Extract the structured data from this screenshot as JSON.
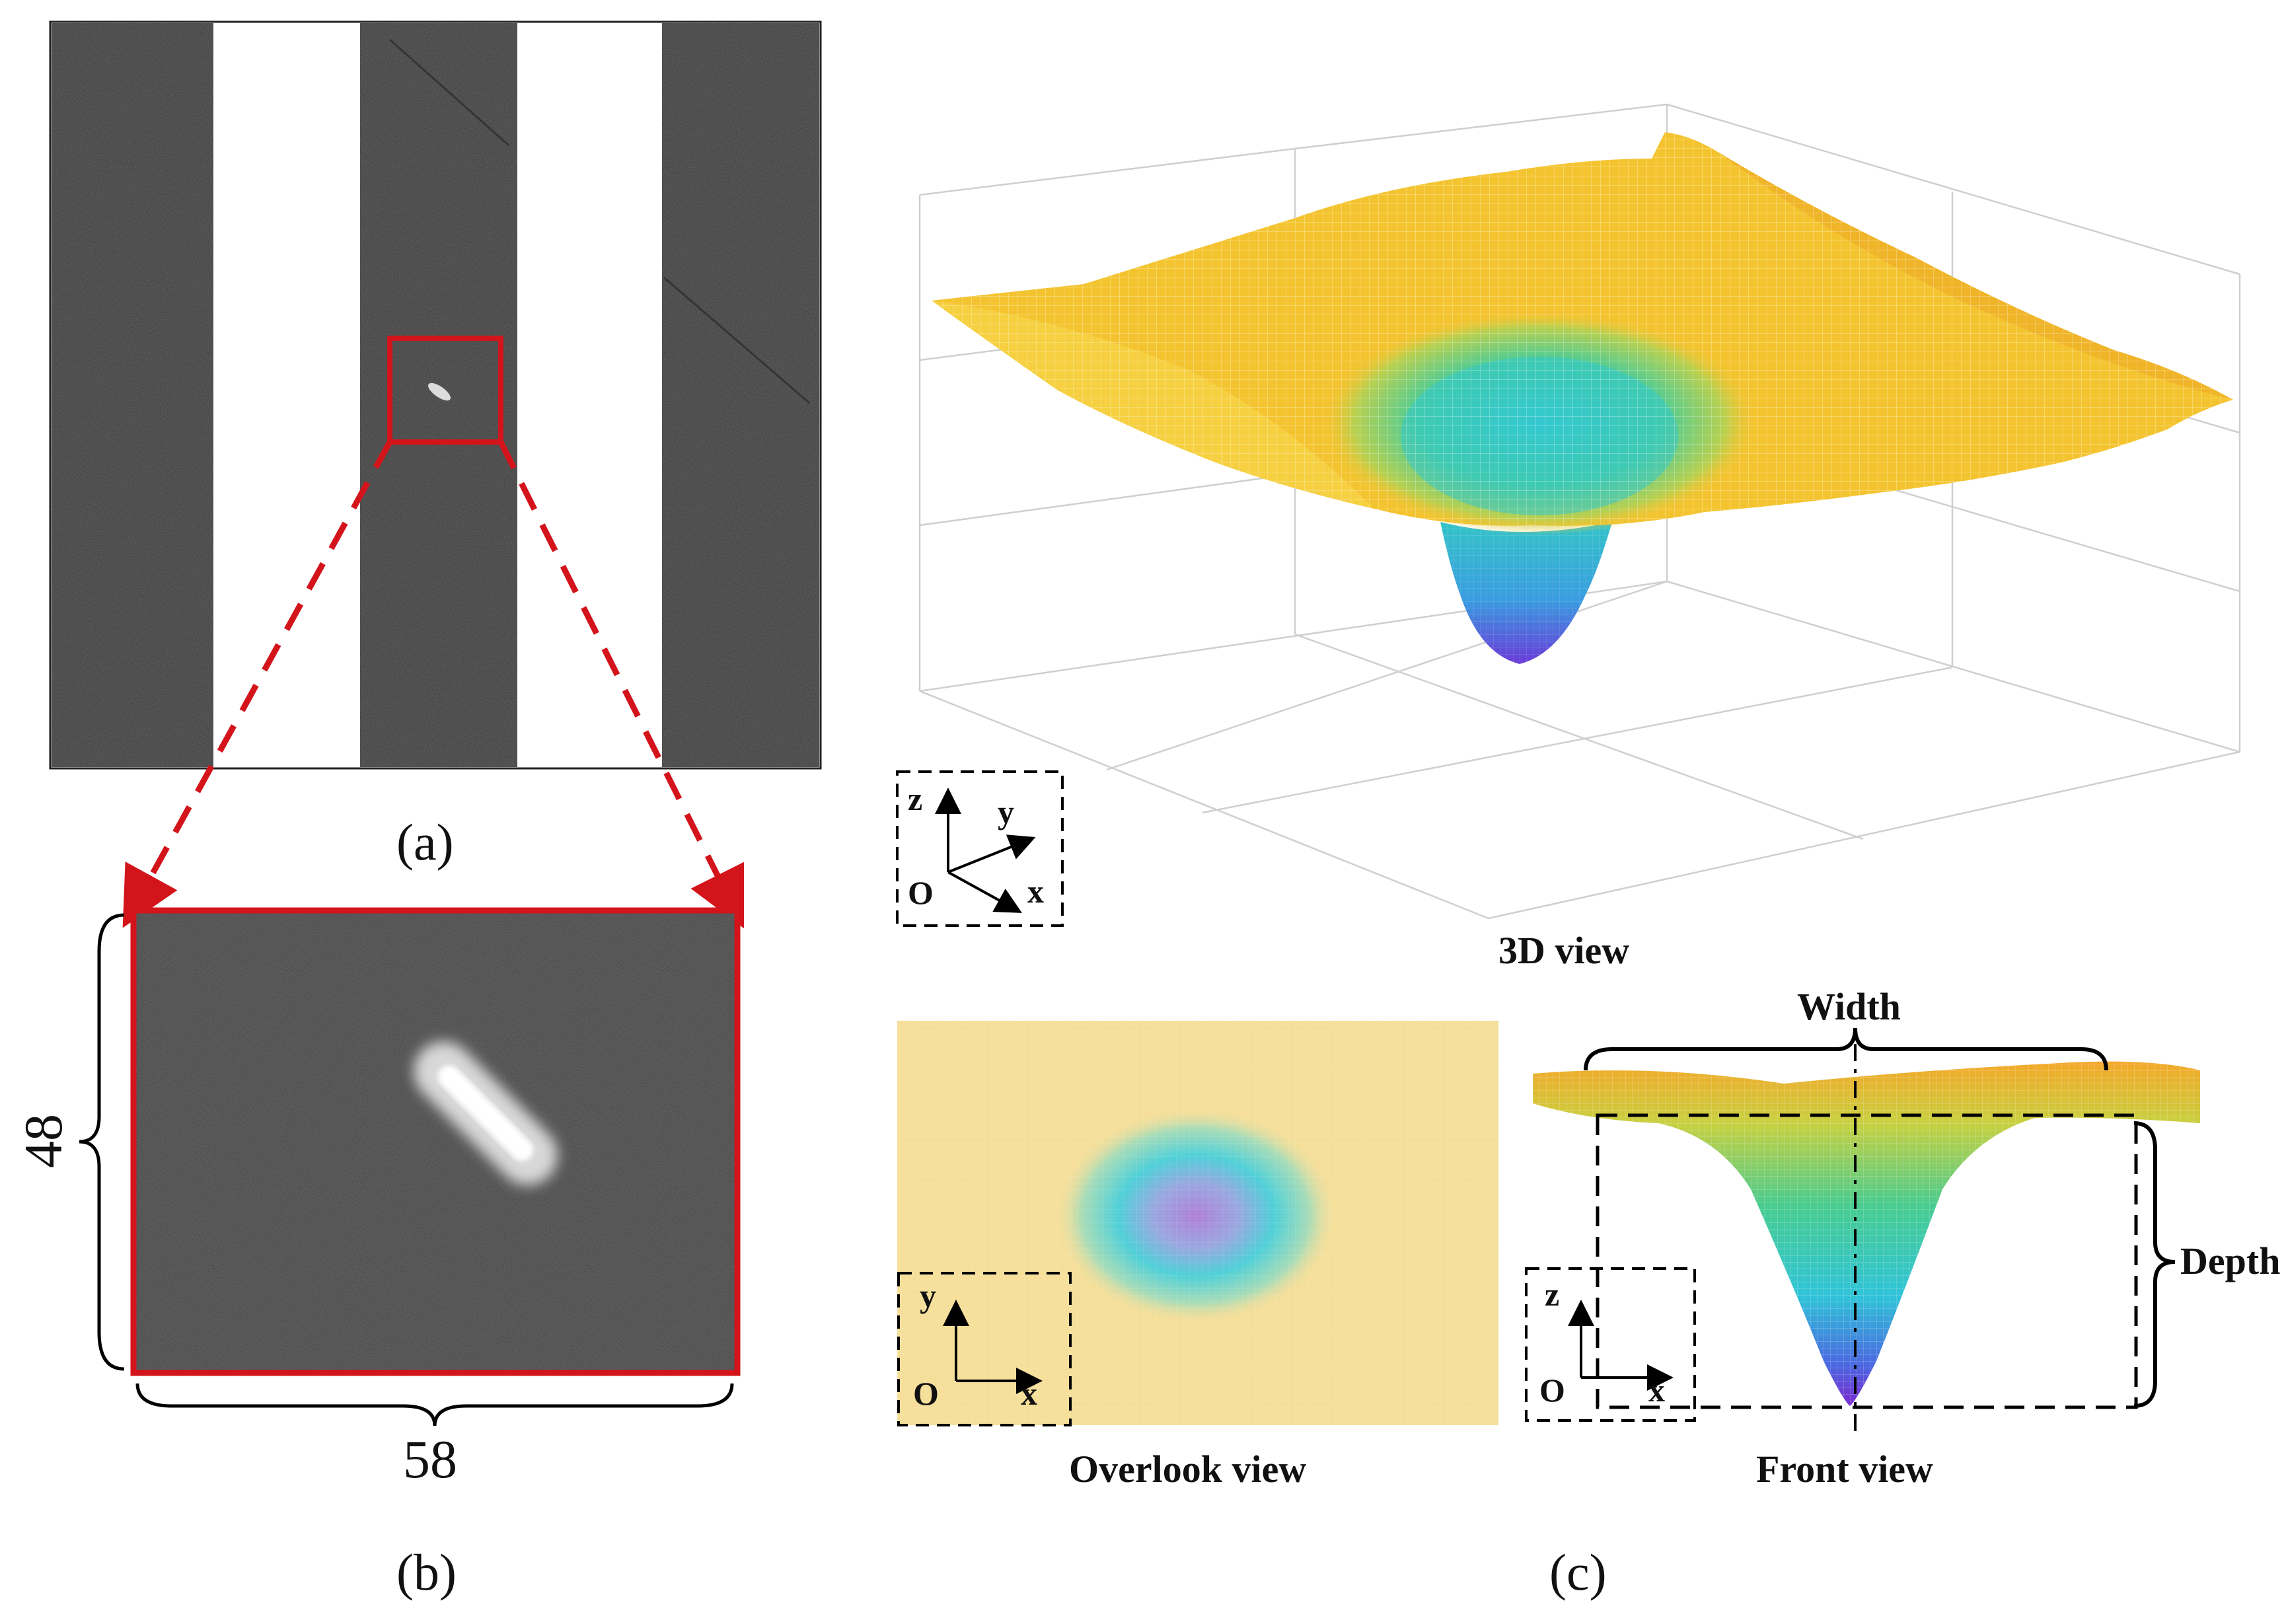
{
  "panel_a": {
    "caption": "(a)"
  },
  "panel_b": {
    "caption": "(b)",
    "dim_height": "48",
    "dim_width": "58"
  },
  "panel_c": {
    "caption": "(c)",
    "view_3d_label": "3D view",
    "overlook_label": "Overlook view",
    "front_label": "Front view",
    "width_label": "Width",
    "depth_label": "Depth"
  },
  "axes": {
    "z": "z",
    "y": "y",
    "x": "x",
    "o": "O"
  },
  "colors": {
    "stripe_dark": "#3a3a3a",
    "highlight_red": "#d3141b",
    "surface_yellow": "#f4c430",
    "surface_orange": "#f0a020",
    "surface_green": "#40c080",
    "surface_cyan": "#30c8d8",
    "surface_blue": "#4a58d8",
    "surface_purple": "#7a2ad0"
  }
}
